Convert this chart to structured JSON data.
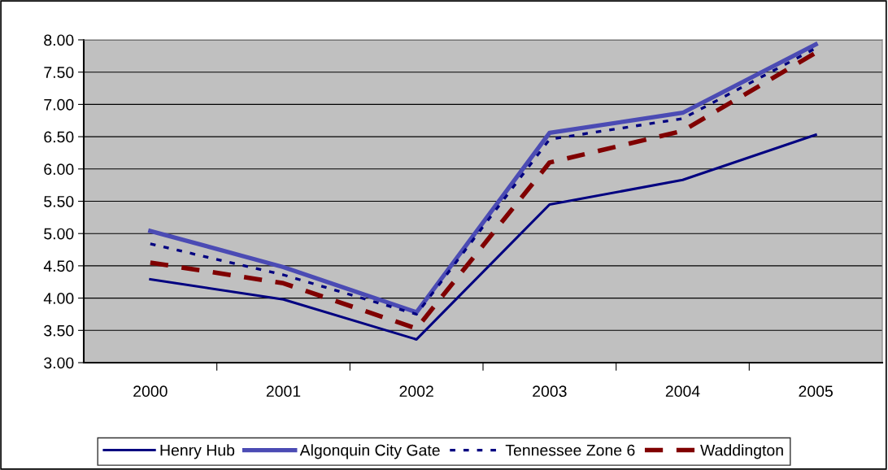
{
  "chart_data": {
    "type": "line",
    "categories": [
      "2000",
      "2001",
      "2002",
      "2003",
      "2004",
      "2005"
    ],
    "series": [
      {
        "name": "Henry Hub",
        "color": "#000080",
        "line_style": "solid",
        "values": [
          4.29,
          3.98,
          3.36,
          5.45,
          5.83,
          6.53
        ]
      },
      {
        "name": "Algonquin City Gate",
        "color": "#4b4bb4",
        "line_style": "solid",
        "values": [
          5.04,
          4.48,
          3.78,
          6.56,
          6.87,
          7.93
        ]
      },
      {
        "name": "Tennessee Zone 6",
        "color": "#000080",
        "line_style": "dotted",
        "values": [
          4.84,
          4.36,
          3.75,
          6.46,
          6.78,
          7.87
        ]
      },
      {
        "name": "Waddington",
        "color": "#800000",
        "line_style": "dashed",
        "values": [
          4.55,
          4.23,
          3.53,
          6.1,
          6.59,
          7.8
        ]
      }
    ],
    "ylim": [
      3.0,
      8.0
    ],
    "yticks": [
      {
        "value": 3.0,
        "label": "3.00"
      },
      {
        "value": 3.5,
        "label": "3.50"
      },
      {
        "value": 4.0,
        "label": "4.00"
      },
      {
        "value": 4.5,
        "label": "4.50"
      },
      {
        "value": 5.0,
        "label": "5.00"
      },
      {
        "value": 5.5,
        "label": "5.50"
      },
      {
        "value": 6.0,
        "label": "6.00"
      },
      {
        "value": 6.5,
        "label": "6.50"
      },
      {
        "value": 7.0,
        "label": "7.00"
      },
      {
        "value": 7.5,
        "label": "7.50"
      },
      {
        "value": 8.0,
        "label": "8.00"
      }
    ],
    "grid": "y",
    "legend": "bottom",
    "marker": "none"
  }
}
